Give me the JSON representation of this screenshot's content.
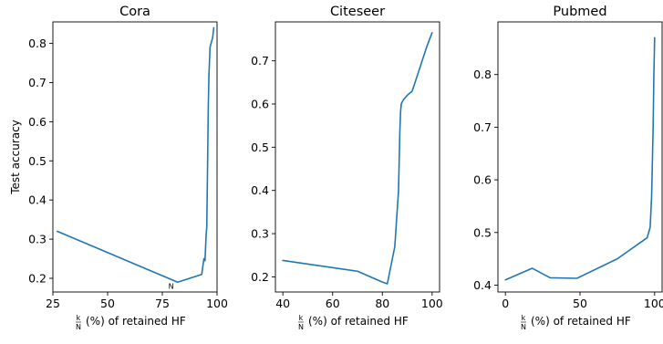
{
  "chart_data": [
    {
      "type": "line",
      "title": "Cora",
      "xlabel_frac_top": "k",
      "xlabel_frac_bottom": "N",
      "xlabel": "(%) of retained HF",
      "ylabel": "Test accuracy",
      "xlim": [
        25,
        100
      ],
      "ylim": [
        0.165,
        0.855
      ],
      "xticks": [
        25,
        50,
        75,
        100
      ],
      "yticks": [
        0.2,
        0.3,
        0.4,
        0.5,
        0.6,
        0.7,
        0.8
      ],
      "annotation": {
        "text": "N",
        "x": 79,
        "y": 0.18
      },
      "series": [
        {
          "color": "#1f77b4",
          "x": [
            27,
            63,
            82,
            93,
            94,
            94.5,
            95,
            95.3,
            95.7,
            96,
            96.3,
            96.8,
            97.5,
            98,
            98.5
          ],
          "y": [
            0.32,
            0.235,
            0.19,
            0.21,
            0.25,
            0.245,
            0.31,
            0.33,
            0.5,
            0.64,
            0.72,
            0.79,
            0.805,
            0.815,
            0.84
          ]
        }
      ]
    },
    {
      "type": "line",
      "title": "Citeseer",
      "xlabel_frac_top": "k",
      "xlabel_frac_bottom": "N",
      "xlabel": "(%) of retained HF",
      "ylabel": "",
      "xlim": [
        37,
        103
      ],
      "ylim": [
        0.165,
        0.79
      ],
      "xticks": [
        40,
        60,
        80,
        100
      ],
      "yticks": [
        0.2,
        0.3,
        0.4,
        0.5,
        0.6,
        0.7
      ],
      "series": [
        {
          "color": "#1f77b4",
          "x": [
            40,
            70,
            80,
            82,
            85,
            86.5,
            87,
            87.3,
            87.6,
            88,
            88.5,
            90,
            92,
            94,
            96,
            98,
            100
          ],
          "y": [
            0.238,
            0.213,
            0.188,
            0.184,
            0.27,
            0.4,
            0.53,
            0.58,
            0.6,
            0.605,
            0.61,
            0.62,
            0.63,
            0.665,
            0.7,
            0.735,
            0.765
          ]
        }
      ]
    },
    {
      "type": "line",
      "title": "Pubmed",
      "xlabel_frac_top": "k",
      "xlabel_frac_bottom": "N",
      "xlabel": "(%) of retained HF",
      "ylabel": "",
      "xlim": [
        -5,
        105
      ],
      "ylim": [
        0.387,
        0.9
      ],
      "xticks": [
        0,
        50,
        100
      ],
      "yticks": [
        0.4,
        0.5,
        0.6,
        0.7,
        0.8
      ],
      "series": [
        {
          "color": "#1f77b4",
          "x": [
            0,
            18,
            30,
            48,
            75,
            95,
            97,
            98,
            99,
            99.5,
            100
          ],
          "y": [
            0.41,
            0.432,
            0.414,
            0.413,
            0.45,
            0.49,
            0.51,
            0.57,
            0.7,
            0.8,
            0.87
          ]
        }
      ]
    }
  ]
}
